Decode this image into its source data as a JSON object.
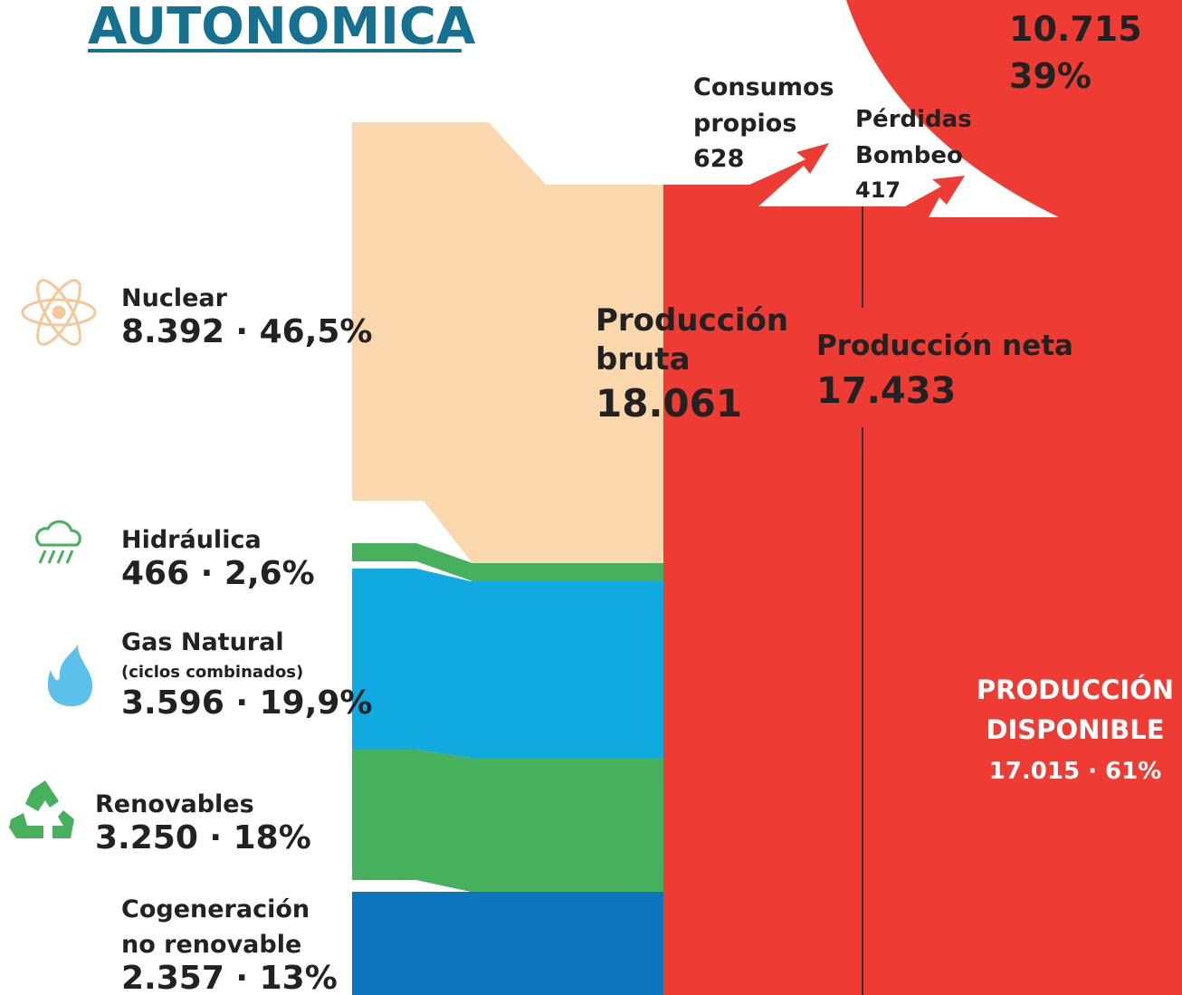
{
  "header": {
    "title": "AUTONOMICA"
  },
  "total_top": {
    "value": "10.715",
    "share": "39%"
  },
  "consumos": {
    "line1": "Consumos",
    "line2": "propios",
    "value": "628"
  },
  "perdidas": {
    "line1": "Pérdidas",
    "line2": "Bombeo",
    "value": "417"
  },
  "sources": [
    {
      "label": "Nuclear",
      "value": "8.392 · 46,5%"
    },
    {
      "label": "Hidráulica",
      "value": "466 · 2,6%"
    },
    {
      "label": "Gas Natural",
      "note": "(ciclos combinados)",
      "value": "3.596 · 19,9%"
    },
    {
      "label": "Renovables",
      "value": "3.250 · 18%"
    },
    {
      "label": "Cogeneración",
      "label2": "no renovable",
      "value": "2.357 · 13%"
    }
  ],
  "bruta": {
    "line1": "Producción",
    "line2": "bruta",
    "value": "18.061"
  },
  "neta": {
    "label": "Producción neta",
    "value": "17.433"
  },
  "disponible": {
    "line1": "PRODUCCIÓN",
    "line2": "DISPONIBLE",
    "value": "17.015 · 61%"
  }
}
